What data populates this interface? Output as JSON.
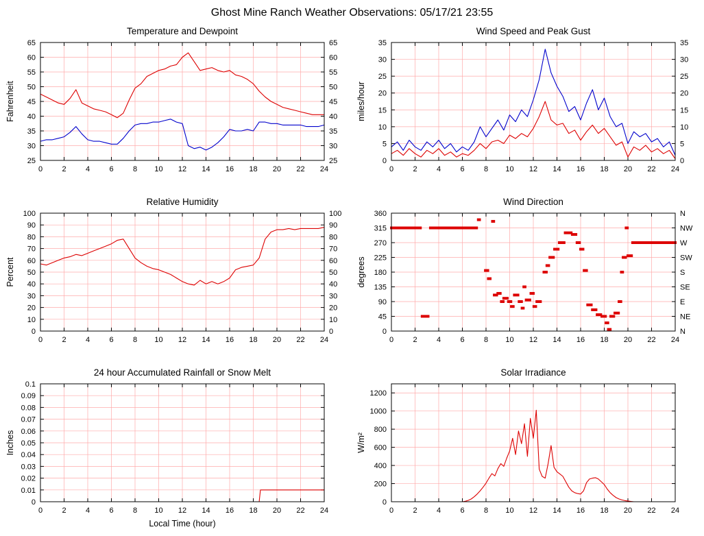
{
  "page_title": "Ghost Mine Ranch Weather Observations: 05/17/21 23:55",
  "colors": {
    "line_red": "#dd0000",
    "line_blue": "#0000cc",
    "grid": "#ffaaaa",
    "border": "#000000"
  },
  "chart_data": [
    {
      "id": "temperature-dewpoint",
      "type": "line",
      "title": "Temperature and Dewpoint",
      "xlabel": "",
      "ylabel": "Fahrenheit",
      "xlim": [
        0,
        24
      ],
      "xtick": 2,
      "ylim": [
        25,
        65
      ],
      "ytick": 5,
      "right_axis": "mirror",
      "series": [
        {
          "name": "temperature",
          "color": "#dd0000",
          "x_start": 0,
          "x_step": 0.5,
          "y": [
            47.5,
            46.5,
            45.5,
            44.5,
            44,
            46,
            49,
            44.5,
            43.5,
            42.5,
            42,
            41.5,
            40.5,
            39.5,
            41,
            45.5,
            49.5,
            51,
            53.5,
            54.5,
            55.5,
            56,
            57,
            57.5,
            60,
            61.5,
            58.5,
            55.5,
            56,
            56.5,
            55.5,
            55,
            55.5,
            54,
            53.5,
            52.5,
            51,
            48.5,
            46.5,
            45,
            44,
            43,
            42.5,
            42,
            41.5,
            41,
            40.5,
            40.5,
            40.5
          ]
        },
        {
          "name": "dewpoint",
          "color": "#0000cc",
          "x_start": 0,
          "x_step": 0.5,
          "y": [
            31.5,
            32,
            32,
            32.5,
            33,
            34.5,
            36.5,
            34,
            32,
            31.5,
            31.5,
            31,
            30.5,
            30.5,
            32.5,
            35,
            37,
            37.5,
            37.5,
            38,
            38,
            38.5,
            39,
            38,
            37.5,
            30,
            29,
            29.5,
            28.5,
            29.5,
            31,
            33,
            35.5,
            35,
            35,
            35.5,
            35,
            38,
            38,
            37.5,
            37.5,
            37,
            37,
            37,
            37,
            36.5,
            36.5,
            36.5,
            37
          ]
        }
      ]
    },
    {
      "id": "wind-speed-gust",
      "type": "line",
      "title": "Wind Speed and Peak Gust",
      "xlabel": "",
      "ylabel": "miles/hour",
      "xlim": [
        0,
        24
      ],
      "xtick": 2,
      "ylim": [
        0,
        35
      ],
      "ytick": 5,
      "right_axis": "mirror",
      "series": [
        {
          "name": "peak-gust",
          "color": "#0000cc",
          "x_start": 0,
          "x_step": 0.5,
          "y": [
            4,
            5.5,
            3,
            6,
            4,
            3,
            5.5,
            4,
            6,
            3.5,
            5,
            2.5,
            4,
            3,
            5.5,
            10,
            7,
            9.5,
            12,
            9,
            13.5,
            11.5,
            15,
            13,
            18,
            24,
            33,
            26,
            22,
            19,
            14.5,
            16,
            12,
            17,
            21,
            15,
            18.5,
            13,
            10,
            11,
            5,
            8.5,
            7,
            8,
            5.5,
            6.5,
            4,
            5.5,
            1.5
          ]
        },
        {
          "name": "wind-speed",
          "color": "#dd0000",
          "x_start": 0,
          "x_step": 0.5,
          "y": [
            2,
            3,
            1.5,
            3.5,
            2,
            1,
            3,
            2,
            3.5,
            1.5,
            2.5,
            1,
            2,
            1.5,
            3,
            5,
            3.5,
            5.5,
            6,
            5,
            7.5,
            6.5,
            8,
            7,
            9.5,
            13,
            17.5,
            12,
            10.5,
            11,
            8,
            9,
            6,
            8.5,
            10.5,
            8,
            9.5,
            7,
            4.5,
            5.5,
            1,
            4,
            3,
            4.5,
            2.5,
            3.5,
            2,
            3,
            0.5
          ]
        }
      ]
    },
    {
      "id": "relative-humidity",
      "type": "line",
      "title": "Relative Humidity",
      "xlabel": "",
      "ylabel": "Percent",
      "xlim": [
        0,
        24
      ],
      "xtick": 2,
      "ylim": [
        0,
        100
      ],
      "ytick": 10,
      "right_axis": "mirror",
      "series": [
        {
          "name": "humidity",
          "color": "#dd0000",
          "x_start": 0,
          "x_step": 0.5,
          "y": [
            57,
            56,
            58,
            60,
            62,
            63,
            65,
            64,
            66,
            68,
            70,
            72,
            74,
            77,
            78,
            70,
            62,
            58,
            55,
            53,
            52,
            50,
            48,
            45,
            42,
            40,
            39,
            43,
            40,
            42,
            40,
            42,
            45,
            52,
            54,
            55,
            56,
            62,
            78,
            84,
            86,
            86,
            87,
            86,
            87,
            87,
            87,
            87,
            88
          ]
        }
      ]
    },
    {
      "id": "wind-direction",
      "type": "scatter",
      "title": "Wind Direction",
      "xlabel": "",
      "ylabel": "degrees",
      "xlim": [
        0,
        24
      ],
      "xtick": 2,
      "ylim": [
        0,
        360
      ],
      "ytick": 45,
      "right_axis": "labels",
      "right_labels": {
        "0": "N",
        "45": "NE",
        "90": "E",
        "135": "SE",
        "180": "S",
        "225": "SW",
        "270": "W",
        "315": "NW",
        "360": "N"
      },
      "marker_color": "#dd0000",
      "segments": [
        [
          0,
          2.45,
          315
        ],
        [
          2.6,
          3.1,
          45
        ],
        [
          3.3,
          7.2,
          315
        ],
        [
          7.35,
          7.45,
          340
        ],
        [
          7.95,
          8.15,
          185
        ],
        [
          8.2,
          8.35,
          160
        ],
        [
          8.55,
          8.65,
          335
        ],
        [
          8.7,
          8.9,
          110
        ],
        [
          9.0,
          9.2,
          115
        ],
        [
          9.3,
          9.45,
          90
        ],
        [
          9.5,
          9.8,
          100
        ],
        [
          9.9,
          10.1,
          90
        ],
        [
          10.15,
          10.3,
          75
        ],
        [
          10.4,
          10.7,
          110
        ],
        [
          10.8,
          11.0,
          90
        ],
        [
          11.05,
          11.15,
          70
        ],
        [
          11.2,
          11.3,
          135
        ],
        [
          11.4,
          11.7,
          95
        ],
        [
          11.8,
          12.0,
          115
        ],
        [
          12.05,
          12.2,
          75
        ],
        [
          12.3,
          12.6,
          90
        ],
        [
          12.9,
          13.1,
          180
        ],
        [
          13.15,
          13.3,
          200
        ],
        [
          13.4,
          13.7,
          225
        ],
        [
          13.8,
          14.1,
          250
        ],
        [
          14.2,
          14.6,
          270
        ],
        [
          14.7,
          15.2,
          300
        ],
        [
          15.3,
          15.6,
          295
        ],
        [
          15.7,
          15.9,
          270
        ],
        [
          16.0,
          16.2,
          250
        ],
        [
          16.3,
          16.5,
          185
        ],
        [
          16.6,
          16.9,
          80
        ],
        [
          17.0,
          17.3,
          65
        ],
        [
          17.4,
          17.7,
          50
        ],
        [
          17.8,
          18.1,
          45
        ],
        [
          18.15,
          18.3,
          25
        ],
        [
          18.35,
          18.5,
          5
        ],
        [
          18.55,
          18.8,
          45
        ],
        [
          18.9,
          19.2,
          55
        ],
        [
          19.25,
          19.4,
          90
        ],
        [
          19.45,
          19.55,
          180
        ],
        [
          19.6,
          19.8,
          225
        ],
        [
          19.85,
          19.95,
          315
        ],
        [
          20.0,
          20.3,
          230
        ],
        [
          20.4,
          24.0,
          270
        ]
      ]
    },
    {
      "id": "rainfall",
      "type": "line",
      "title": "24 hour Accumulated Rainfall or Snow Melt",
      "xlabel": "Local Time (hour)",
      "ylabel": "Inches",
      "xlim": [
        0,
        24
      ],
      "xtick": 2,
      "ylim": [
        0,
        0.1
      ],
      "ytick": 0.01,
      "right_axis": "none",
      "series": [
        {
          "name": "rainfall",
          "color": "#dd0000",
          "x": [
            0,
            18.5,
            18.6,
            24
          ],
          "y": [
            0,
            0,
            0.01,
            0.01
          ]
        }
      ]
    },
    {
      "id": "solar-irradiance",
      "type": "line",
      "title": "Solar Irradiance",
      "xlabel": "",
      "ylabel": "W/m²",
      "xlim": [
        0,
        24
      ],
      "xtick": 2,
      "ylim": [
        0,
        1300
      ],
      "ytick": 200,
      "right_axis": "none",
      "series": [
        {
          "name": "solar",
          "color": "#dd0000",
          "x_start": 0,
          "x_step": 0.25,
          "y": [
            0,
            0,
            0,
            0,
            0,
            0,
            0,
            0,
            0,
            0,
            0,
            0,
            0,
            0,
            0,
            0,
            0,
            0,
            0,
            0,
            0,
            0,
            0,
            0,
            0,
            5,
            15,
            30,
            55,
            85,
            120,
            160,
            205,
            260,
            310,
            285,
            365,
            420,
            390,
            480,
            560,
            700,
            520,
            780,
            640,
            860,
            500,
            920,
            700,
            1010,
            360,
            280,
            260,
            420,
            620,
            380,
            330,
            305,
            280,
            220,
            160,
            120,
            100,
            90,
            85,
            120,
            210,
            250,
            260,
            265,
            250,
            220,
            190,
            140,
            100,
            70,
            45,
            30,
            20,
            12,
            8,
            4,
            0,
            0,
            0,
            0,
            0,
            0,
            0,
            0,
            0,
            0,
            0,
            0,
            0,
            0,
            0
          ]
        }
      ]
    }
  ]
}
